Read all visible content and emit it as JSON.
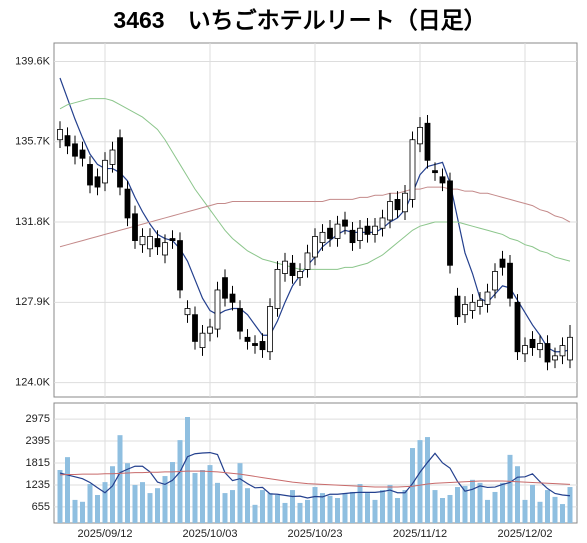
{
  "chart_data": [
    {
      "type": "candlestick",
      "title": "3463　いちごホテルリート（日足）",
      "ylim": [
        123300,
        140500
      ],
      "yticks": [
        {
          "value": 124000,
          "label": "124.0K"
        },
        {
          "value": 127900,
          "label": "127.9K"
        },
        {
          "value": 131800,
          "label": "131.8K"
        },
        {
          "value": 135700,
          "label": "135.7K"
        },
        {
          "value": 139600,
          "label": "139.6K"
        }
      ],
      "grid": true,
      "up_color": "#ffffff",
      "down_color": "#000000",
      "open": [
        135800,
        136000,
        135600,
        135300,
        134600,
        134000,
        133700,
        134600,
        135900,
        133400,
        132200,
        130700,
        130500,
        131000,
        130200,
        131000,
        130900,
        127300,
        127300,
        125700,
        126400,
        126600,
        129100,
        128300,
        127600,
        126200,
        125900,
        126000,
        125500,
        127600,
        129300,
        129800,
        129100,
        129500,
        130100,
        130800,
        131500,
        131000,
        131900,
        131400,
        130900,
        131600,
        131200,
        131500,
        131900,
        132900,
        132300,
        132900,
        135600,
        136600,
        134300,
        134000,
        133800,
        128200,
        127300,
        127500,
        127700,
        127800,
        128500,
        130000,
        129800,
        127900,
        125400,
        126100,
        125600,
        125900,
        125100,
        125300,
        125100
      ],
      "high": [
        136700,
        136400,
        136000,
        135700,
        135000,
        134400,
        135200,
        135700,
        136300,
        133800,
        132600,
        131500,
        131500,
        131400,
        131200,
        131400,
        131300,
        128000,
        127700,
        126800,
        127100,
        128900,
        129500,
        128700,
        128000,
        126600,
        126300,
        126400,
        128100,
        129900,
        130300,
        130200,
        129800,
        130700,
        131500,
        131700,
        131900,
        132100,
        132300,
        131800,
        131900,
        132000,
        132000,
        132400,
        133200,
        133300,
        133600,
        136200,
        136900,
        137000,
        134700,
        134400,
        134200,
        128600,
        128200,
        128300,
        128400,
        128800,
        129800,
        130400,
        130200,
        128300,
        126200,
        126500,
        126300,
        126300,
        125700,
        126200,
        126800
      ],
      "low": [
        135400,
        135100,
        134600,
        134500,
        133200,
        133100,
        133300,
        134200,
        133100,
        131600,
        130500,
        130300,
        130100,
        130200,
        129800,
        130500,
        128100,
        126900,
        125600,
        125300,
        126000,
        126200,
        127700,
        127500,
        126100,
        125600,
        125400,
        125200,
        125100,
        127200,
        128900,
        128800,
        128700,
        129100,
        129700,
        130400,
        130600,
        130600,
        131200,
        130400,
        130500,
        130800,
        130800,
        131100,
        131500,
        132000,
        131900,
        132500,
        135200,
        134400,
        133800,
        133300,
        129300,
        126800,
        126900,
        127100,
        127300,
        127400,
        128100,
        129200,
        127700,
        125100,
        125000,
        125300,
        125200,
        124600,
        124700,
        124900,
        124700
      ],
      "close": [
        136300,
        135500,
        135000,
        134900,
        133600,
        133500,
        134800,
        135300,
        133500,
        132000,
        130900,
        131100,
        131100,
        130600,
        130800,
        130900,
        128500,
        127600,
        126000,
        126400,
        126700,
        128500,
        128100,
        127900,
        126500,
        126000,
        125800,
        125600,
        127700,
        129500,
        129900,
        129200,
        129400,
        130300,
        131100,
        131300,
        131000,
        131700,
        131600,
        130800,
        131500,
        131200,
        131600,
        132000,
        132800,
        132400,
        133200,
        135800,
        136400,
        134800,
        134200,
        133700,
        129700,
        127200,
        127800,
        127900,
        128000,
        128400,
        129400,
        129600,
        128100,
        125500,
        125800,
        125700,
        125900,
        125000,
        125300,
        125800,
        126200
      ],
      "series": [
        {
          "color": "#24408e",
          "values": [
            138800,
            137800,
            136800,
            135900,
            135100,
            134600,
            134400,
            134400,
            134200,
            133800,
            133000,
            132300,
            131700,
            131200,
            131000,
            130900,
            130500,
            129900,
            129000,
            128100,
            127500,
            127300,
            127500,
            127600,
            127600,
            127300,
            126800,
            126300,
            126300,
            127000,
            127900,
            128700,
            129200,
            129700,
            130100,
            130600,
            130900,
            131200,
            131400,
            131300,
            131300,
            131300,
            131300,
            131500,
            131800,
            132000,
            132400,
            133200,
            134100,
            134500,
            134600,
            134700,
            133700,
            132000,
            130300,
            129300,
            128100,
            127900,
            128300,
            128700,
            128600,
            128000,
            127400,
            126800,
            126300,
            125700,
            125500,
            125500,
            125600
          ]
        },
        {
          "color": "#8cc68c",
          "values": [
            137300,
            137500,
            137600,
            137700,
            137800,
            137800,
            137800,
            137700,
            137500,
            137300,
            137100,
            136900,
            136600,
            136300,
            135800,
            135200,
            134600,
            134000,
            133400,
            132900,
            132400,
            131900,
            131400,
            131000,
            130700,
            130400,
            130200,
            130000,
            129900,
            129800,
            129700,
            129600,
            129500,
            129500,
            129500,
            129500,
            129500,
            129500,
            129600,
            129600,
            129700,
            129800,
            130000,
            130200,
            130500,
            130800,
            131100,
            131400,
            131600,
            131700,
            131800,
            131800,
            131800,
            131800,
            131700,
            131600,
            131500,
            131400,
            131300,
            131200,
            131000,
            130900,
            130700,
            130600,
            130400,
            130300,
            130100,
            130000,
            129900
          ]
        },
        {
          "color": "#c48a8a",
          "values": [
            130600,
            130700,
            130800,
            130900,
            131000,
            131100,
            131200,
            131300,
            131400,
            131500,
            131600,
            131700,
            131800,
            131900,
            132000,
            132100,
            132200,
            132300,
            132400,
            132500,
            132600,
            132700,
            132700,
            132800,
            132800,
            132800,
            132800,
            132800,
            132800,
            132800,
            132800,
            132800,
            132800,
            132800,
            132800,
            132800,
            132900,
            132900,
            132900,
            132900,
            133000,
            133000,
            133100,
            133100,
            133200,
            133200,
            133300,
            133400,
            133400,
            133500,
            133500,
            133500,
            133400,
            133400,
            133300,
            133300,
            133200,
            133200,
            133100,
            133000,
            132900,
            132800,
            132700,
            132600,
            132400,
            132300,
            132100,
            132000,
            131800
          ]
        }
      ]
    },
    {
      "type": "bar",
      "categories": [
        null,
        null,
        null,
        null,
        null,
        null,
        "2025/09/12",
        null,
        null,
        null,
        null,
        null,
        null,
        null,
        null,
        null,
        null,
        null,
        null,
        null,
        "2025/10/03",
        null,
        null,
        null,
        null,
        null,
        null,
        null,
        null,
        null,
        null,
        null,
        null,
        null,
        "2025/10/23",
        null,
        null,
        null,
        null,
        null,
        null,
        null,
        null,
        null,
        null,
        null,
        null,
        null,
        "2025/11/12",
        null,
        null,
        null,
        null,
        null,
        null,
        null,
        null,
        null,
        null,
        null,
        null,
        null,
        "2025/12/02",
        null,
        null,
        null,
        null,
        null,
        null
      ],
      "ylim": [
        230,
        3400
      ],
      "yticks": [
        655,
        1235,
        1815,
        2395,
        2975
      ],
      "grid": true,
      "color": "#8fbfe0",
      "values": [
        1630,
        1970,
        840,
        790,
        1260,
        970,
        1310,
        1730,
        2550,
        1810,
        1235,
        1310,
        1020,
        1150,
        1470,
        1840,
        2420,
        3030,
        1550,
        1630,
        1760,
        1290,
        1020,
        1100,
        1810,
        1150,
        710,
        1100,
        1020,
        970,
        760,
        1100,
        760,
        840,
        1180,
        1020,
        950,
        890,
        1020,
        1050,
        1260,
        1020,
        840,
        1100,
        1235,
        890,
        1100,
        2210,
        2420,
        2500,
        1100,
        890,
        970,
        1180,
        1210,
        1370,
        1290,
        840,
        1050,
        1290,
        2030,
        1730,
        840,
        1235,
        790,
        1100,
        920,
        730,
        1180
      ],
      "series": [
        {
          "color": "#24408e",
          "values": [
            1550,
            1500,
            1450,
            1400,
            1300,
            1160,
            1030,
            1210,
            1560,
            1650,
            1730,
            1730,
            1580,
            1310,
            1250,
            1360,
            1580,
            1980,
            2060,
            2080,
            2090,
            2040,
            1560,
            1350,
            1400,
            1270,
            1160,
            1170,
            1000,
            990,
            960,
            930,
            940,
            890,
            930,
            920,
            990,
            990,
            1010,
            1030,
            1040,
            1040,
            1040,
            1060,
            1100,
            1030,
            1030,
            1270,
            1570,
            1830,
            2070,
            1820,
            1680,
            1330,
            1070,
            1120,
            1210,
            1170,
            1180,
            1250,
            1300,
            1440,
            1450,
            1530,
            1320,
            1140,
            1010,
            970,
            950
          ]
        },
        {
          "color": "#c86a6a",
          "values": [
            1500,
            1510,
            1510,
            1520,
            1520,
            1520,
            1530,
            1530,
            1540,
            1550,
            1560,
            1560,
            1570,
            1570,
            1580,
            1580,
            1590,
            1600,
            1600,
            1600,
            1590,
            1580,
            1560,
            1540,
            1520,
            1490,
            1460,
            1430,
            1400,
            1370,
            1340,
            1310,
            1290,
            1270,
            1260,
            1250,
            1240,
            1230,
            1220,
            1210,
            1200,
            1190,
            1180,
            1180,
            1180,
            1180,
            1190,
            1200,
            1230,
            1260,
            1280,
            1290,
            1300,
            1310,
            1320,
            1330,
            1340,
            1340,
            1340,
            1340,
            1330,
            1320,
            1310,
            1300,
            1290,
            1280,
            1270,
            1260,
            1250
          ]
        }
      ]
    }
  ]
}
